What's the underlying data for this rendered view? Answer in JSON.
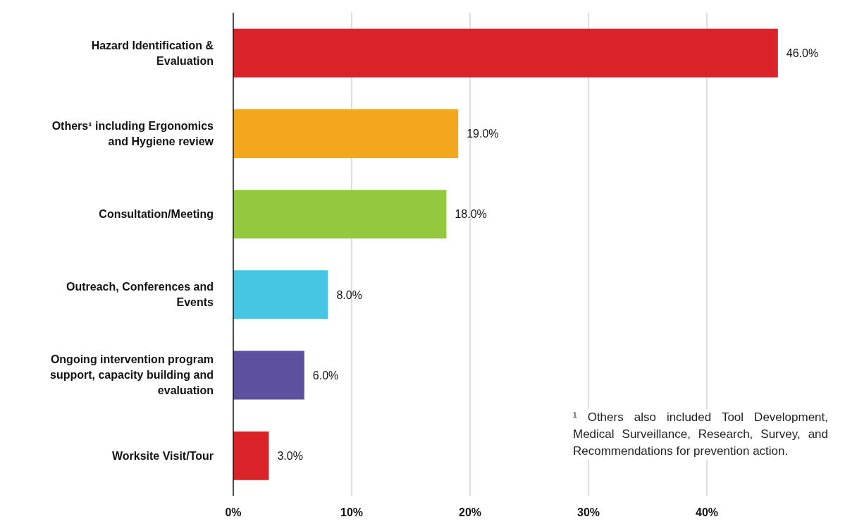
{
  "chart_data": {
    "type": "bar",
    "orientation": "horizontal",
    "categories": [
      "Hazard Identification & Evaluation",
      "Others¹ including Ergonomics and Hygiene review",
      "Consultation/Meeting",
      "Outreach, Conferences and Events",
      "Ongoing intervention program support, capacity building and evaluation",
      "Worksite Visit/Tour"
    ],
    "values": [
      46,
      19,
      18,
      8,
      6,
      3
    ],
    "value_labels": [
      "46.0%",
      "19.0%",
      "18.0%",
      "8.0%",
      "6.0%",
      "3.0%"
    ],
    "colors": [
      "#da2229",
      "#f2a71f",
      "#93c83f",
      "#47c6e3",
      "#5c509f",
      "#da2229"
    ],
    "xlim": [
      0,
      50
    ],
    "xticks": [
      {
        "value": 0,
        "label": "0%"
      },
      {
        "value": 10,
        "label": "10%"
      },
      {
        "value": 20,
        "label": "20%"
      },
      {
        "value": 30,
        "label": "30%"
      },
      {
        "value": 40,
        "label": "40%"
      }
    ],
    "grid": "x",
    "annotations": [
      "¹ Others also included Tool Development, Medical Surveillance, Research, Survey, and Recommendations for prevention action."
    ]
  }
}
